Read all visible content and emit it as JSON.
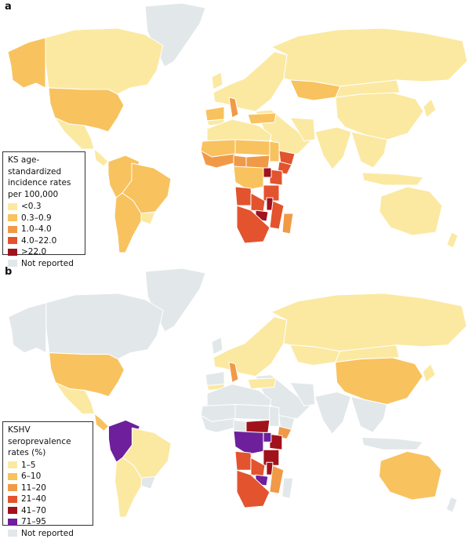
{
  "colors": {
    "ocean": "#ffffff",
    "border": "#ffffff",
    "a": [
      "#fbe9a2",
      "#f8c25e",
      "#f09a48",
      "#e3532d",
      "#a1121c",
      "#e2e7ea"
    ],
    "b": [
      "#fbe9a2",
      "#f8c25e",
      "#f09a48",
      "#e3532d",
      "#a1121c",
      "#6d1f9c",
      "#e2e7ea"
    ]
  },
  "panel_a": {
    "letter": "a",
    "legend": {
      "title": "KS age-standardized\nincidence rates\nper 100,000",
      "items": [
        {
          "label": "<0.3",
          "color": "#fbe9a2"
        },
        {
          "label": "0.3–0.9",
          "color": "#f8c25e"
        },
        {
          "label": "1.0–4.0",
          "color": "#f09a48"
        },
        {
          "label": "4.0–22.0",
          "color": "#e3532d"
        },
        {
          "label": ">22.0",
          "color": "#a1121c"
        },
        {
          "label": "Not reported",
          "color": "#e2e7ea"
        }
      ]
    },
    "regions": {
      "greenland": 5,
      "canada": 0,
      "alaska": 1,
      "usa": 1,
      "mexico": 0,
      "central_america": 0,
      "south_america": 1,
      "brazil": 1,
      "south_america_east": 0,
      "argentina": 1,
      "europe": 0,
      "italy": 2,
      "uk": 0,
      "spain": 1,
      "iberia_south": 0,
      "russia": 0,
      "kazakhstan": 1,
      "middle_east": 0,
      "turkey": 1,
      "iran": 0,
      "china": 0,
      "mongolia": 0,
      "india": 0,
      "southeast_asia": 0,
      "indonesia": 0,
      "japan": 0,
      "australia": 0,
      "new_zealand": 0,
      "north_africa": 0,
      "sahel": 1,
      "west_africa": 2,
      "chad_niger": 1,
      "central_africa_north": 2,
      "nigeria": 2,
      "sudan": 1,
      "horn": 3,
      "ethiopia": 3,
      "kenya": 3,
      "uganda": 4,
      "drc": 1,
      "tanzania": 3,
      "zambia": 3,
      "angola": 3,
      "mozambique": 3,
      "southern_africa": 3,
      "madagascar": 2,
      "zimbabwe": 4,
      "malawi": 4
    }
  },
  "panel_b": {
    "letter": "b",
    "legend": {
      "title": "KSHV seroprevalence\nrates (%)",
      "items": [
        {
          "label": "1–5",
          "color": "#fbe9a2"
        },
        {
          "label": "6–10",
          "color": "#f8c25e"
        },
        {
          "label": "11–20",
          "color": "#f09a48"
        },
        {
          "label": "21–40",
          "color": "#e3532d"
        },
        {
          "label": "41–70",
          "color": "#a1121c"
        },
        {
          "label": "71–95",
          "color": "#6d1f9c"
        },
        {
          "label": "Not reported",
          "color": "#e2e7ea"
        }
      ]
    },
    "regions": {
      "greenland": 6,
      "canada": 6,
      "alaska": 6,
      "usa": 1,
      "mexico": 0,
      "central_america": 1,
      "south_america": 5,
      "brazil": 0,
      "south_america_east": 6,
      "argentina": 0,
      "europe": 0,
      "italy": 2,
      "uk": 6,
      "spain": 6,
      "iberia_south": 0,
      "russia": 0,
      "kazakhstan": 0,
      "middle_east": 6,
      "turkey": 0,
      "iran": 6,
      "china": 1,
      "mongolia": 0,
      "india": 6,
      "southeast_asia": 6,
      "indonesia": 6,
      "japan": 0,
      "australia": 1,
      "new_zealand": 6,
      "north_africa": 6,
      "sahel": 6,
      "west_africa": 6,
      "chad_niger": 6,
      "central_africa_north": 4,
      "nigeria": 6,
      "sudan": 6,
      "horn": 6,
      "ethiopia": 2,
      "kenya": 4,
      "uganda": 5,
      "drc": 5,
      "tanzania": 4,
      "zambia": 3,
      "angola": 3,
      "mozambique": 2,
      "southern_africa": 3,
      "madagascar": 6,
      "zimbabwe": 5,
      "malawi": 4
    }
  }
}
